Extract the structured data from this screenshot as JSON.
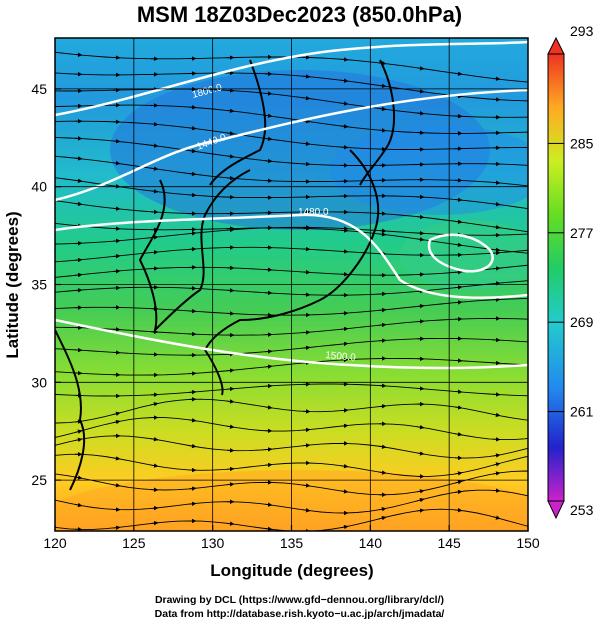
{
  "title": "MSM 18Z03Dec2023 (850.0hPa)",
  "x_axis": {
    "label": "Longitude (degrees)",
    "ticks": [
      120,
      125,
      130,
      135,
      140,
      145,
      150
    ],
    "range": [
      120,
      150
    ]
  },
  "y_axis": {
    "label": "Latitude  (degrees)",
    "ticks": [
      25,
      30,
      35,
      40,
      45
    ],
    "range": [
      22.4,
      47.6
    ]
  },
  "colorbar": {
    "ticks": [
      293,
      285,
      277,
      269,
      261,
      253
    ],
    "range": [
      253,
      293
    ],
    "colors": [
      "#cc22cc",
      "#2222cc",
      "#2288ee",
      "#22cccc",
      "#22cc66",
      "#66dd22",
      "#ccee22",
      "#ffaa22",
      "#ee3322"
    ]
  },
  "contour_labels": [
    "1800.0",
    "1440.0",
    "1480.0",
    "1500.0"
  ],
  "footer": {
    "line1": "Drawing by DCL (https://www.gfd−dennou.org/library/dcl/)",
    "line2": "Data from http://database.rish.kyoto−u.ac.jp/arch/jmadata/"
  }
}
